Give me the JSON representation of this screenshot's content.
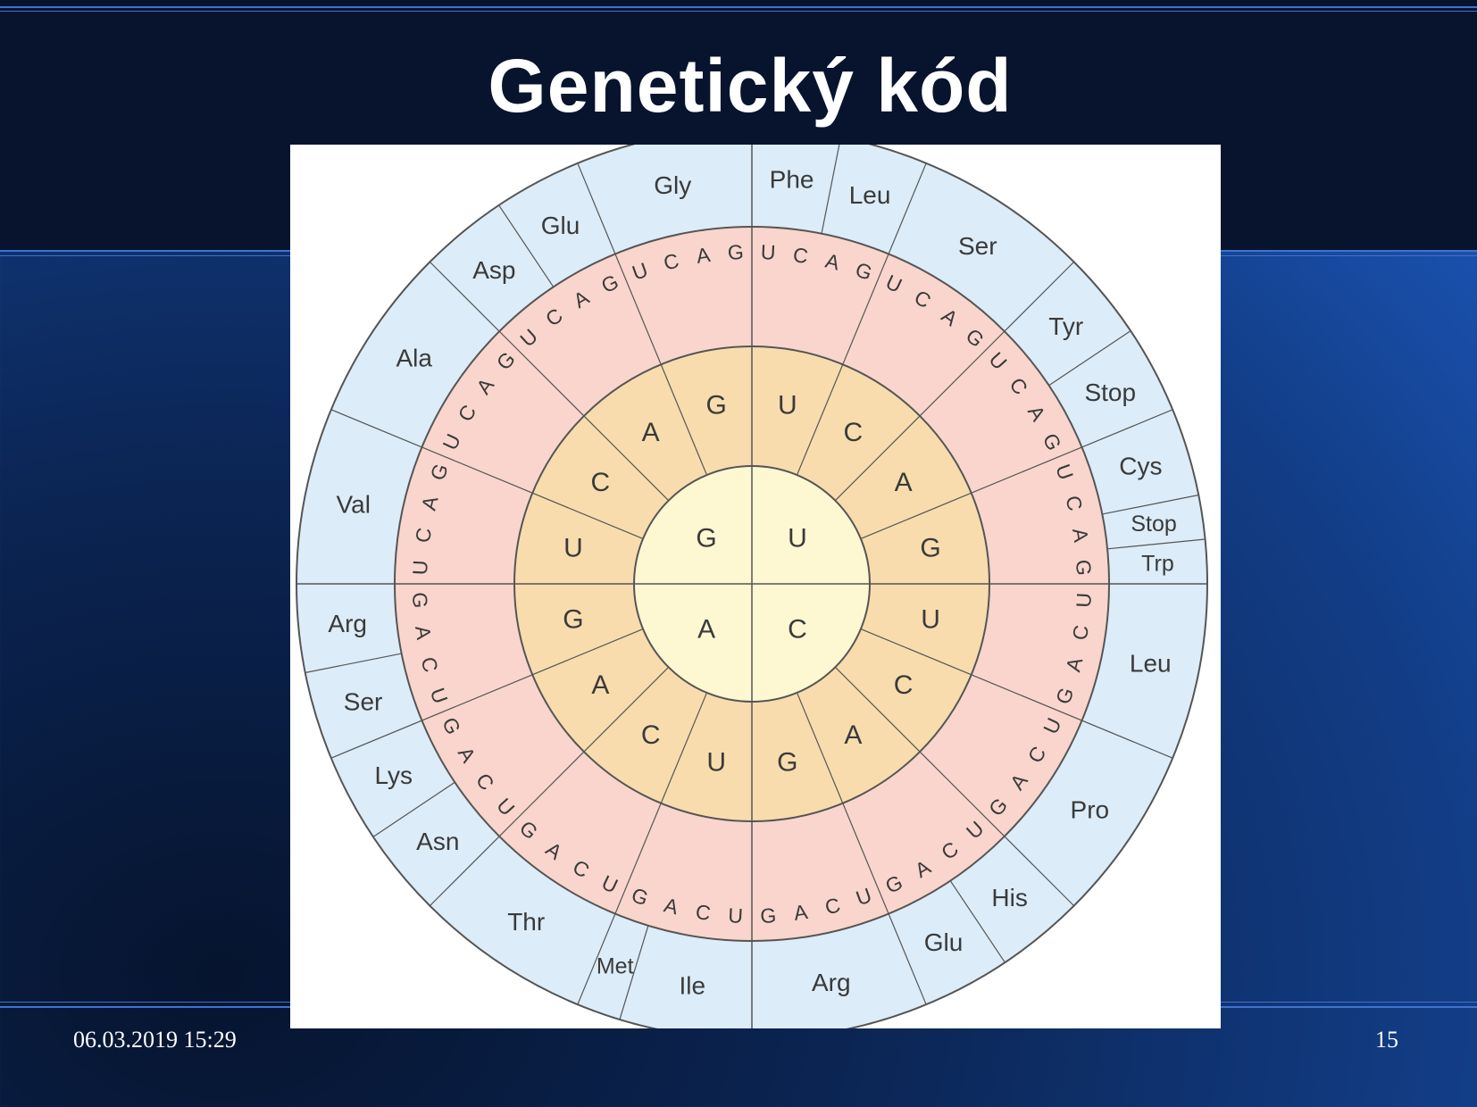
{
  "slide": {
    "title": "Genetický kód",
    "footer_date": "06.03.2019 15:29",
    "page_number": "15"
  },
  "colors": {
    "background_dark": "#08142e",
    "background_blue": "#1f5ec8",
    "ring_outer": "#dcecf8",
    "ring_third": "#f9d5cd",
    "ring_second": "#f8dcae",
    "ring_inner": "#fdf7d2",
    "ring_line": "#555555"
  },
  "codon_wheel": {
    "first_base": [
      "U",
      "C",
      "A",
      "G"
    ],
    "second_base": [
      "U",
      "C",
      "A",
      "G"
    ],
    "third_base": [
      "U",
      "C",
      "A",
      "G"
    ],
    "amino_acids": [
      {
        "label": "Phe",
        "from": 0,
        "to": 2
      },
      {
        "label": "Leu",
        "from": 2,
        "to": 4
      },
      {
        "label": "Ser",
        "from": 4,
        "to": 8
      },
      {
        "label": "Tyr",
        "from": 8,
        "to": 10
      },
      {
        "label": "Stop",
        "from": 10,
        "to": 12
      },
      {
        "label": "Cys",
        "from": 12,
        "to": 14
      },
      {
        "label": "Stop",
        "from": 14,
        "to": 15
      },
      {
        "label": "Trp",
        "from": 15,
        "to": 16
      },
      {
        "label": "Leu",
        "from": 16,
        "to": 20
      },
      {
        "label": "Pro",
        "from": 20,
        "to": 24
      },
      {
        "label": "His",
        "from": 24,
        "to": 26
      },
      {
        "label": "Glu",
        "from": 26,
        "to": 28
      },
      {
        "label": "Arg",
        "from": 28,
        "to": 32
      },
      {
        "label": "Ile",
        "from": 32,
        "to": 35
      },
      {
        "label": "Met",
        "from": 35,
        "to": 36
      },
      {
        "label": "Thr",
        "from": 36,
        "to": 40
      },
      {
        "label": "Asn",
        "from": 40,
        "to": 42
      },
      {
        "label": "Lys",
        "from": 42,
        "to": 44
      },
      {
        "label": "Ser",
        "from": 44,
        "to": 46
      },
      {
        "label": "Arg",
        "from": 46,
        "to": 48
      },
      {
        "label": "Val",
        "from": 48,
        "to": 52
      },
      {
        "label": "Ala",
        "from": 52,
        "to": 56
      },
      {
        "label": "Asp",
        "from": 56,
        "to": 58
      },
      {
        "label": "Glu",
        "from": 58,
        "to": 60
      },
      {
        "label": "Gly",
        "from": 60,
        "to": 64
      }
    ]
  }
}
